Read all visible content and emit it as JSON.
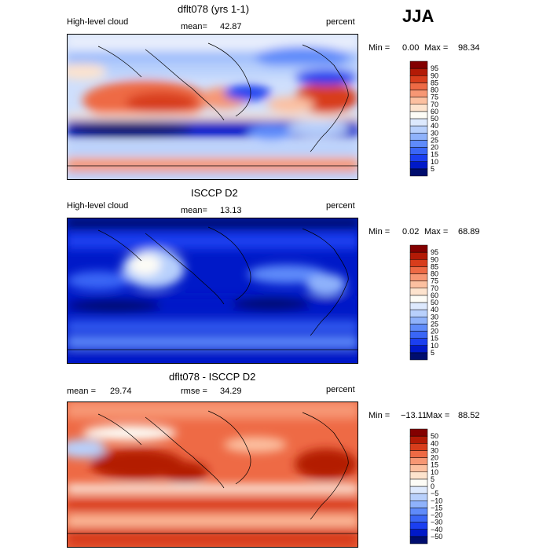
{
  "season": "JJA",
  "chart_data": [
    {
      "type": "heatmap",
      "title": "dflt078 (yrs 1-1)",
      "variable": "High-level cloud",
      "units": "percent",
      "mean_label": "mean=",
      "mean": "42.87",
      "min_label": "Min =",
      "min": "0.00",
      "max_label": "Max =",
      "max": "98.34",
      "colorbar": {
        "levels": [
          5,
          10,
          15,
          20,
          25,
          30,
          40,
          50,
          60,
          70,
          75,
          80,
          85,
          90,
          95
        ],
        "colors": [
          "#000d6e",
          "#0019c8",
          "#1b3ff0",
          "#3a66f6",
          "#5f8bfa",
          "#8fb2fb",
          "#b8d0fc",
          "#dde9fd",
          "#fdfcf6",
          "#fde3cd",
          "#fcc0a0",
          "#f79774",
          "#ee6a45",
          "#d83d1c",
          "#b31a06",
          "#830000"
        ]
      }
    },
    {
      "type": "heatmap",
      "title": "ISCCP D2",
      "variable": "High-level cloud",
      "units": "percent",
      "mean_label": "mean=",
      "mean": "13.13",
      "min_label": "Min =",
      "min": "0.02",
      "max_label": "Max =",
      "max": "68.89",
      "colorbar": {
        "levels": [
          5,
          10,
          15,
          20,
          25,
          30,
          40,
          50,
          60,
          70,
          75,
          80,
          85,
          90,
          95
        ],
        "colors": [
          "#000d6e",
          "#0019c8",
          "#1b3ff0",
          "#3a66f6",
          "#5f8bfa",
          "#8fb2fb",
          "#b8d0fc",
          "#dde9fd",
          "#fdfcf6",
          "#fde3cd",
          "#fcc0a0",
          "#f79774",
          "#ee6a45",
          "#d83d1c",
          "#b31a06",
          "#830000"
        ]
      }
    },
    {
      "type": "heatmap",
      "title": "dflt078 - ISCCP D2",
      "units": "percent",
      "mean_label": "mean =",
      "mean": "29.74",
      "rmse_label": "rmse =",
      "rmse": "34.29",
      "min_label": "Min =",
      "min": "−13.11",
      "max_label": "Max =",
      "max": "88.52",
      "colorbar": {
        "levels": [
          "−50",
          "−40",
          "−30",
          "−20",
          "−15",
          "−10",
          "−5",
          "0",
          "5",
          "10",
          "15",
          "20",
          "30",
          "40",
          "50"
        ],
        "colors": [
          "#000d6e",
          "#0019c8",
          "#1b3ff0",
          "#3a66f6",
          "#5f8bfa",
          "#8fb2fb",
          "#b8d0fc",
          "#dde9fd",
          "#fdfcf6",
          "#fde3cd",
          "#fcc0a0",
          "#f79774",
          "#ee6a45",
          "#d83d1c",
          "#b31a06",
          "#830000"
        ]
      }
    }
  ]
}
